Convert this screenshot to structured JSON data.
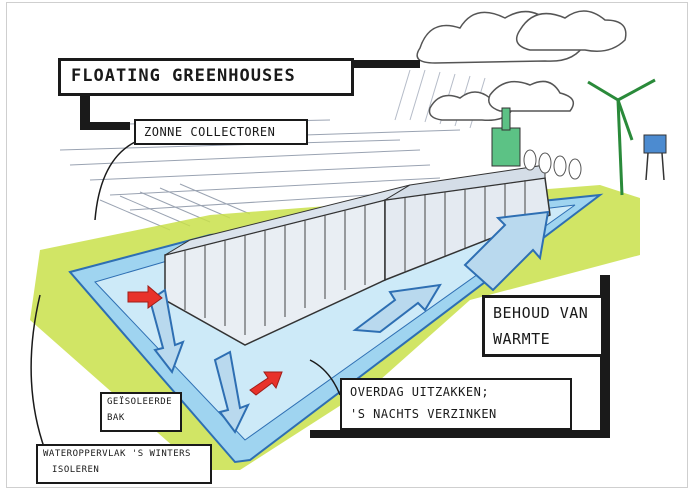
{
  "title": "Floating greenhouses",
  "labels": {
    "zonne_collectoren": "Zonne collectoren",
    "behoud_van_warmte_line1": "Behoud van",
    "behoud_van_warmte_line2": "warmte",
    "overdag_line1": "Overdag uitzakken;",
    "overdag_line2": "'s nachts verzinken",
    "geisoleerde_bak_line1": "Geïsoleerde",
    "geisoleerde_bak_line2": "bak",
    "wateroppervlak_line1": "Wateroppervlak 's winters",
    "wateroppervlak_line2": "isoleren"
  },
  "colors": {
    "grass": "#c9e04a",
    "water": "#9fd4f0",
    "water_dark": "#2e6fb3",
    "arrow_red": "#e8322a",
    "greenhouse": "#e9eef3",
    "sky_lines": "#8c97a8",
    "ink": "#1a1a1a"
  }
}
